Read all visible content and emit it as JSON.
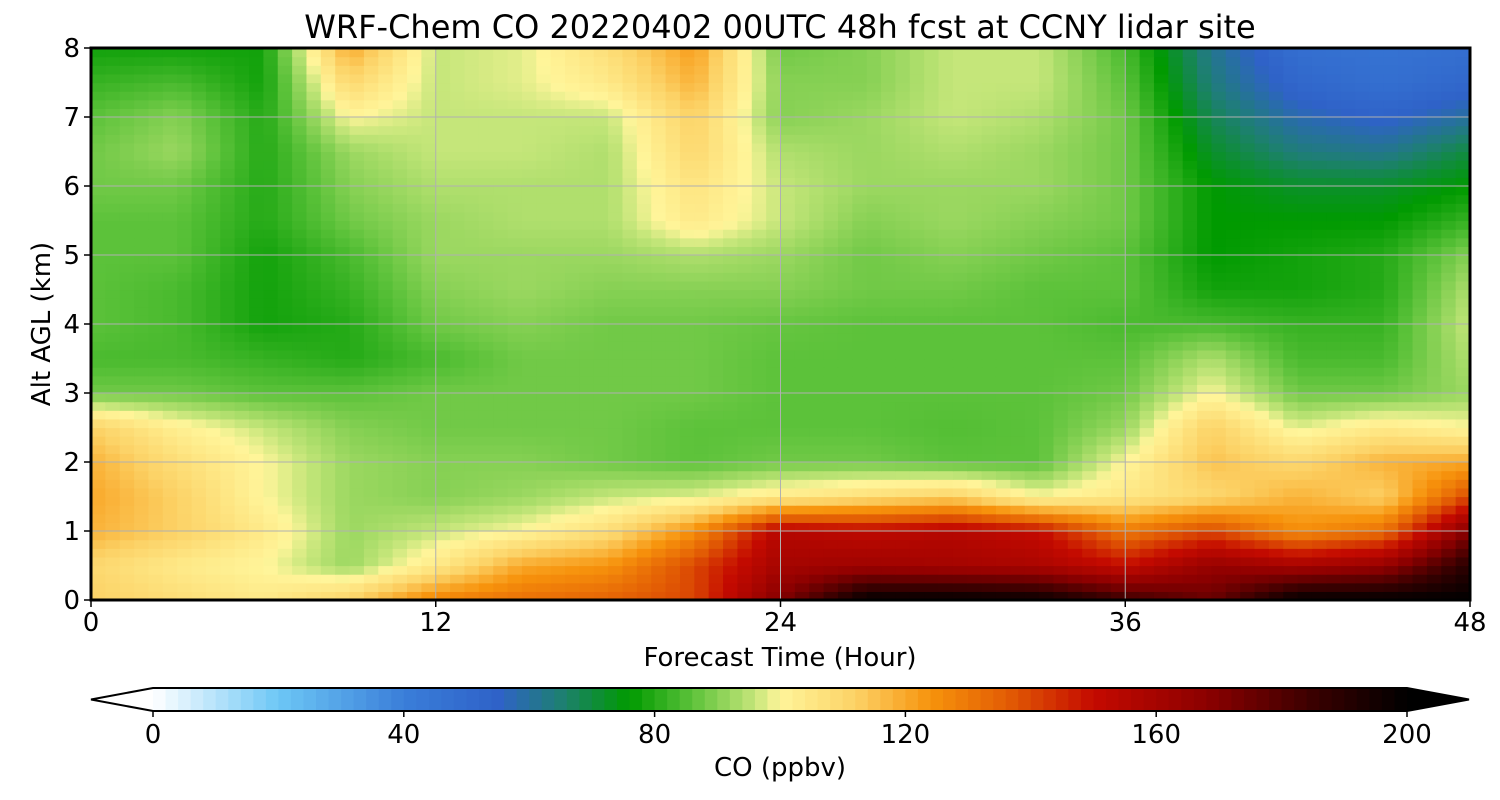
{
  "chart_data": {
    "type": "heatmap",
    "title": "WRF-Chem CO  20220402 00UTC 48h fcst at CCNY lidar site",
    "xlabel": "Forecast Time (Hour)",
    "ylabel": "Alt AGL (km)",
    "xlim": [
      0,
      48
    ],
    "ylim": [
      0,
      8
    ],
    "x_ticks": [
      0,
      12,
      24,
      36,
      48
    ],
    "y_ticks": [
      0,
      1,
      2,
      3,
      4,
      5,
      6,
      7,
      8
    ],
    "grid": true,
    "colorbar": {
      "label": "CO  (ppbv)",
      "ticks": [
        0,
        40,
        80,
        120,
        160,
        200
      ],
      "range": [
        0,
        200
      ],
      "extend": "both",
      "stops": [
        {
          "value": 0,
          "color": "#ffffff"
        },
        {
          "value": 20,
          "color": "#6dc7f5"
        },
        {
          "value": 40,
          "color": "#3a7ed9"
        },
        {
          "value": 55,
          "color": "#2f62c8"
        },
        {
          "value": 65,
          "color": "#1e7f73"
        },
        {
          "value": 76,
          "color": "#009a00"
        },
        {
          "value": 86,
          "color": "#5cc23a"
        },
        {
          "value": 96,
          "color": "#c5e67a"
        },
        {
          "value": 100,
          "color": "#fff59a"
        },
        {
          "value": 112,
          "color": "#fcd266"
        },
        {
          "value": 124,
          "color": "#f7930c"
        },
        {
          "value": 136,
          "color": "#e35e04"
        },
        {
          "value": 150,
          "color": "#c40a00"
        },
        {
          "value": 168,
          "color": "#8c0000"
        },
        {
          "value": 185,
          "color": "#3a0000"
        },
        {
          "value": 200,
          "color": "#000000"
        }
      ]
    },
    "x": [
      0,
      3,
      6,
      9,
      12,
      15,
      18,
      21,
      24,
      27,
      30,
      33,
      36,
      39,
      42,
      45,
      48
    ],
    "y": [
      0,
      0.5,
      1,
      1.5,
      2,
      2.5,
      3,
      3.5,
      4,
      4.5,
      5,
      5.5,
      6,
      6.5,
      7,
      7.5,
      8
    ],
    "z": [
      [
        112,
        108,
        104,
        112,
        128,
        132,
        135,
        140,
        170,
        200,
        200,
        198,
        185,
        175,
        200,
        200,
        200
      ],
      [
        110,
        104,
        100,
        92,
        104,
        120,
        124,
        140,
        160,
        162,
        160,
        158,
        150,
        165,
        160,
        165,
        190
      ],
      [
        118,
        112,
        104,
        92,
        96,
        100,
        108,
        125,
        155,
        152,
        155,
        150,
        130,
        140,
        125,
        132,
        170
      ],
      [
        120,
        112,
        100,
        92,
        90,
        92,
        96,
        98,
        104,
        108,
        112,
        100,
        105,
        110,
        118,
        112,
        140
      ],
      [
        118,
        108,
        100,
        92,
        90,
        90,
        88,
        86,
        88,
        88,
        86,
        86,
        100,
        115,
        110,
        118,
        120
      ],
      [
        112,
        102,
        96,
        90,
        88,
        88,
        88,
        86,
        86,
        86,
        85,
        86,
        92,
        112,
        98,
        104,
        100
      ],
      [
        88,
        88,
        86,
        86,
        88,
        88,
        88,
        88,
        86,
        86,
        86,
        86,
        88,
        100,
        88,
        88,
        92
      ],
      [
        84,
        84,
        82,
        80,
        84,
        88,
        88,
        88,
        86,
        86,
        86,
        86,
        86,
        94,
        84,
        84,
        94
      ],
      [
        86,
        84,
        78,
        80,
        88,
        90,
        88,
        88,
        87,
        86,
        86,
        86,
        84,
        84,
        82,
        82,
        96
      ],
      [
        86,
        84,
        78,
        82,
        90,
        92,
        90,
        90,
        90,
        88,
        88,
        86,
        86,
        78,
        78,
        80,
        94
      ],
      [
        86,
        86,
        78,
        84,
        92,
        92,
        92,
        94,
        92,
        88,
        90,
        88,
        86,
        76,
        78,
        80,
        90
      ],
      [
        86,
        86,
        80,
        88,
        92,
        94,
        94,
        104,
        96,
        90,
        92,
        90,
        88,
        76,
        76,
        76,
        82
      ],
      [
        88,
        88,
        80,
        90,
        94,
        94,
        94,
        106,
        96,
        92,
        92,
        92,
        88,
        76,
        72,
        72,
        76
      ],
      [
        88,
        92,
        80,
        92,
        96,
        96,
        94,
        110,
        94,
        92,
        94,
        92,
        88,
        72,
        64,
        62,
        70
      ],
      [
        86,
        90,
        80,
        100,
        96,
        96,
        96,
        112,
        90,
        92,
        96,
        94,
        88,
        68,
        58,
        54,
        60
      ],
      [
        82,
        84,
        78,
        110,
        96,
        98,
        104,
        118,
        90,
        90,
        96,
        96,
        86,
        64,
        52,
        48,
        52
      ],
      [
        78,
        78,
        78,
        120,
        96,
        98,
        108,
        122,
        88,
        90,
        96,
        96,
        84,
        62,
        48,
        46,
        48
      ]
    ]
  }
}
